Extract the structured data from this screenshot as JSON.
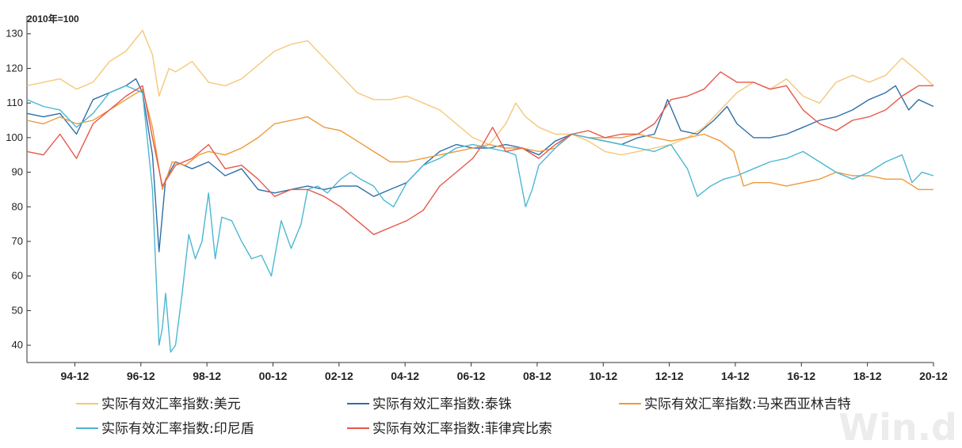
{
  "chart_data": {
    "type": "line",
    "unit_label": "2010年=100",
    "ylim": [
      35,
      132
    ],
    "yticks": [
      40,
      50,
      60,
      70,
      80,
      90,
      100,
      110,
      120,
      130
    ],
    "xlim": [
      1993.5,
      2020.95
    ],
    "xticks": [
      1994.95,
      1996.95,
      1998.95,
      2000.95,
      2002.95,
      2004.95,
      2006.95,
      2008.95,
      2010.95,
      2012.95,
      2014.95,
      2016.95,
      2018.95,
      2020.95
    ],
    "xtick_labels": [
      "94-12",
      "96-12",
      "98-12",
      "00-12",
      "02-12",
      "04-12",
      "06-12",
      "08-12",
      "10-12",
      "12-12",
      "14-12",
      "16-12",
      "18-12",
      "20-12"
    ],
    "grid": false,
    "legend_position": "bottom",
    "watermark": "Win.d",
    "series": [
      {
        "name": "实际有效汇率指数:美元",
        "color": "#f5c77a",
        "x": [
          1993.5,
          1994.0,
          1994.5,
          1995.0,
          1995.5,
          1996.0,
          1996.5,
          1997.0,
          1997.3,
          1997.5,
          1997.8,
          1998.0,
          1998.5,
          1999.0,
          1999.5,
          2000.0,
          2000.5,
          2001.0,
          2001.5,
          2002.0,
          2002.5,
          2003.0,
          2003.5,
          2004.0,
          2004.5,
          2005.0,
          2005.5,
          2006.0,
          2006.5,
          2007.0,
          2007.5,
          2008.0,
          2008.3,
          2008.6,
          2009.0,
          2009.5,
          2010.0,
          2010.5,
          2011.0,
          2011.5,
          2012.0,
          2012.5,
          2013.0,
          2013.5,
          2014.0,
          2014.5,
          2015.0,
          2015.5,
          2016.0,
          2016.5,
          2017.0,
          2017.5,
          2018.0,
          2018.5,
          2019.0,
          2019.5,
          2020.0,
          2020.5,
          2020.95
        ],
        "values": [
          115,
          116,
          117,
          114,
          116,
          122,
          125,
          131,
          124,
          112,
          120,
          119,
          122,
          116,
          115,
          117,
          121,
          125,
          127,
          128,
          123,
          118,
          113,
          111,
          111,
          112,
          110,
          108,
          104,
          100,
          98,
          104,
          110,
          106,
          103,
          101,
          101,
          99,
          96,
          95,
          96,
          97,
          98,
          100,
          103,
          108,
          113,
          116,
          114,
          117,
          112,
          110,
          116,
          118,
          116,
          118,
          123,
          119,
          115
        ]
      },
      {
        "name": "实际有效汇率指数:泰铢",
        "color": "#2e6fa8",
        "x": [
          1993.5,
          1994.0,
          1994.5,
          1995.0,
          1995.5,
          1996.0,
          1996.5,
          1996.8,
          1997.0,
          1997.3,
          1997.5,
          1997.7,
          1998.0,
          1998.5,
          1999.0,
          1999.5,
          2000.0,
          2000.5,
          2001.0,
          2001.5,
          2002.0,
          2002.5,
          2003.0,
          2003.5,
          2004.0,
          2004.5,
          2005.0,
          2005.5,
          2006.0,
          2006.5,
          2007.0,
          2007.5,
          2008.0,
          2008.5,
          2009.0,
          2009.5,
          2010.0,
          2010.5,
          2011.0,
          2011.5,
          2012.0,
          2012.5,
          2012.9,
          2013.3,
          2013.8,
          2014.3,
          2014.7,
          2015.0,
          2015.5,
          2016.0,
          2016.5,
          2017.0,
          2017.5,
          2018.0,
          2018.5,
          2019.0,
          2019.5,
          2019.8,
          2020.2,
          2020.5,
          2020.95
        ],
        "values": [
          107,
          106,
          107,
          101,
          111,
          113,
          115,
          117,
          113,
          95,
          67,
          88,
          93,
          91,
          93,
          89,
          91,
          85,
          84,
          85,
          86,
          85,
          86,
          86,
          83,
          85,
          87,
          92,
          96,
          98,
          97,
          97,
          98,
          97,
          95,
          99,
          101,
          100,
          99,
          98,
          100,
          101,
          111,
          102,
          101,
          105,
          109,
          104,
          100,
          100,
          101,
          103,
          105,
          106,
          108,
          111,
          113,
          115,
          108,
          111,
          109
        ]
      },
      {
        "name": "实际有效汇率指数:马来西亚林吉特",
        "color": "#ee9a3a",
        "x": [
          1993.5,
          1994.0,
          1994.5,
          1995.0,
          1995.5,
          1996.0,
          1996.5,
          1997.0,
          1997.3,
          1997.6,
          1997.9,
          1998.3,
          1998.7,
          1999.0,
          1999.5,
          2000.0,
          2000.5,
          2001.0,
          2001.5,
          2002.0,
          2002.5,
          2003.0,
          2003.5,
          2004.0,
          2004.5,
          2005.0,
          2005.5,
          2006.0,
          2006.5,
          2007.0,
          2007.5,
          2008.0,
          2008.5,
          2009.0,
          2009.5,
          2010.0,
          2010.5,
          2011.0,
          2011.5,
          2012.0,
          2012.5,
          2013.0,
          2013.5,
          2014.0,
          2014.5,
          2014.9,
          2015.2,
          2015.5,
          2016.0,
          2016.5,
          2017.0,
          2017.5,
          2018.0,
          2018.5,
          2019.0,
          2019.5,
          2020.0,
          2020.5,
          2020.95
        ],
        "values": [
          105,
          104,
          106,
          104,
          105,
          108,
          111,
          114,
          103,
          85,
          93,
          92,
          95,
          96,
          95,
          97,
          100,
          104,
          105,
          106,
          103,
          102,
          99,
          96,
          93,
          93,
          94,
          95,
          96,
          97,
          98,
          97,
          97,
          96,
          97,
          101,
          100,
          100,
          100,
          101,
          100,
          99,
          100,
          101,
          99,
          96,
          86,
          87,
          87,
          86,
          87,
          88,
          90,
          89,
          89,
          88,
          88,
          85,
          85
        ]
      },
      {
        "name": "实际有效汇率指数:印尼盾",
        "color": "#4cb7d3",
        "x": [
          1993.5,
          1994.0,
          1994.5,
          1995.0,
          1995.5,
          1996.0,
          1996.5,
          1997.0,
          1997.3,
          1997.5,
          1997.6,
          1997.7,
          1997.85,
          1998.0,
          1998.2,
          1998.4,
          1998.6,
          1998.8,
          1999.0,
          1999.2,
          1999.4,
          1999.7,
          2000.0,
          2000.3,
          2000.6,
          2000.9,
          2001.2,
          2001.5,
          2001.8,
          2002.0,
          2002.3,
          2002.6,
          2003.0,
          2003.3,
          2003.6,
          2004.0,
          2004.3,
          2004.6,
          2005.0,
          2005.5,
          2006.0,
          2006.5,
          2007.0,
          2007.5,
          2008.0,
          2008.3,
          2008.6,
          2008.8,
          2009.0,
          2009.3,
          2009.6,
          2010.0,
          2010.5,
          2011.0,
          2011.5,
          2012.0,
          2012.5,
          2013.0,
          2013.5,
          2013.8,
          2014.2,
          2014.6,
          2015.0,
          2015.5,
          2016.0,
          2016.5,
          2017.0,
          2017.5,
          2018.0,
          2018.5,
          2019.0,
          2019.5,
          2020.0,
          2020.3,
          2020.6,
          2020.95
        ],
        "values": [
          111,
          109,
          108,
          103,
          107,
          113,
          115,
          113,
          85,
          40,
          45,
          55,
          38,
          40,
          55,
          72,
          65,
          70,
          84,
          65,
          77,
          76,
          70,
          65,
          66,
          60,
          76,
          68,
          75,
          85,
          86,
          84,
          88,
          90,
          88,
          86,
          82,
          80,
          87,
          92,
          94,
          97,
          98,
          97,
          96,
          95,
          80,
          85,
          92,
          95,
          98,
          101,
          100,
          99,
          98,
          97,
          96,
          98,
          91,
          83,
          86,
          88,
          89,
          91,
          93,
          94,
          96,
          93,
          90,
          88,
          90,
          93,
          95,
          87,
          90,
          89
        ]
      },
      {
        "name": "实际有效汇率指数:菲律宾比索",
        "color": "#e8574a",
        "x": [
          1993.5,
          1994.0,
          1994.5,
          1995.0,
          1995.5,
          1996.0,
          1996.5,
          1997.0,
          1997.3,
          1997.6,
          1998.0,
          1998.5,
          1999.0,
          1999.5,
          2000.0,
          2000.5,
          2001.0,
          2001.5,
          2002.0,
          2002.5,
          2003.0,
          2003.5,
          2004.0,
          2004.5,
          2005.0,
          2005.5,
          2006.0,
          2006.5,
          2007.0,
          2007.3,
          2007.6,
          2008.0,
          2008.5,
          2009.0,
          2009.5,
          2010.0,
          2010.5,
          2011.0,
          2011.5,
          2012.0,
          2012.5,
          2013.0,
          2013.5,
          2014.0,
          2014.5,
          2015.0,
          2015.5,
          2016.0,
          2016.5,
          2017.0,
          2017.5,
          2018.0,
          2018.5,
          2019.0,
          2019.5,
          2020.0,
          2020.5,
          2020.95
        ],
        "values": [
          96,
          95,
          101,
          94,
          104,
          108,
          112,
          115,
          100,
          86,
          92,
          94,
          98,
          91,
          92,
          88,
          83,
          85,
          85,
          83,
          80,
          76,
          72,
          74,
          76,
          79,
          86,
          90,
          94,
          98,
          103,
          96,
          97,
          94,
          98,
          101,
          102,
          100,
          101,
          101,
          104,
          111,
          112,
          114,
          119,
          116,
          116,
          114,
          115,
          108,
          104,
          102,
          105,
          106,
          108,
          112,
          115,
          115
        ]
      }
    ]
  }
}
